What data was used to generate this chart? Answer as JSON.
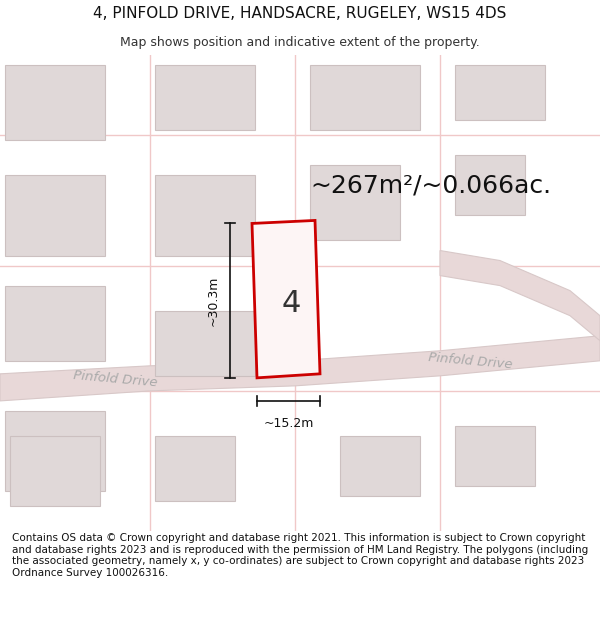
{
  "title_line1": "4, PINFOLD DRIVE, HANDSACRE, RUGELEY, WS15 4DS",
  "title_line2": "Map shows position and indicative extent of the property.",
  "area_text": "~267m²/~0.066ac.",
  "label_number": "4",
  "dim_height": "~30.3m",
  "dim_width": "~15.2m",
  "road_label_left": "Pinfold Drive",
  "road_label_right": "Pinfold Drive",
  "footer_text": "Contains OS data © Crown copyright and database right 2021. This information is subject to Crown copyright and database rights 2023 and is reproduced with the permission of HM Land Registry. The polygons (including the associated geometry, namely x, y co-ordinates) are subject to Crown copyright and database rights 2023 Ordnance Survey 100026316.",
  "map_bg": "#f2eded",
  "plot_color": "#cc0000",
  "plot_fill": "#fdf5f5",
  "road_fill": "#e8d8d8",
  "road_edge": "#d8c8c8",
  "building_fill": "#e0d8d8",
  "building_edge": "#ccc0c0",
  "grid_line_color": "#f0c8c8",
  "dim_color": "#111111",
  "road_text_color": "#aaaaaa",
  "title_fontsize": 11,
  "subtitle_fontsize": 9,
  "area_fontsize": 18,
  "number_fontsize": 22,
  "footer_fontsize": 7.5
}
